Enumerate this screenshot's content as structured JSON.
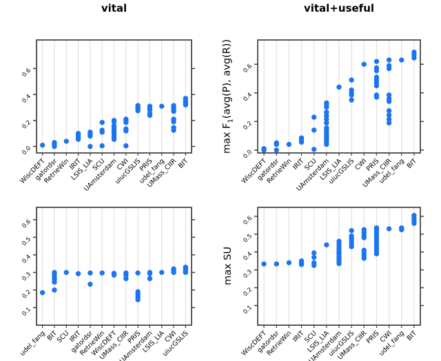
{
  "colors": {
    "dot": "#1c75f0",
    "gridline": "#e1e1e1",
    "axis": "#3c3c3c",
    "text": "#000000",
    "background": "#ffffff"
  },
  "chart_data": [
    {
      "type": "scatter",
      "subtype": "stripchart",
      "title": "vital",
      "xlabel": "",
      "ylabel": "",
      "yticks": [
        0.0,
        0.2,
        0.4,
        0.6
      ],
      "ylim": [
        -0.05,
        0.82
      ],
      "grid": "vertical-per-category",
      "categories": [
        "WiscDEFT",
        "gatordsr",
        "RetrieWin",
        "IRIT",
        "LSIS_LIA",
        "SCU",
        "UAmsterdam",
        "CWI",
        "uiucGSLIS",
        "PRIS",
        "udel_fang",
        "UMass_CIIR",
        "BIT"
      ],
      "values": [
        [
          0.01
        ],
        [
          0.0,
          0.015,
          0.03
        ],
        [
          0.04
        ],
        [
          0.055,
          0.07,
          0.085,
          0.1
        ],
        [
          0.0,
          0.08,
          0.095,
          0.11
        ],
        [
          0.005,
          0.11,
          0.125,
          0.185
        ],
        [
          0.055,
          0.07,
          0.085,
          0.1,
          0.115,
          0.13,
          0.145,
          0.16,
          0.19,
          0.2
        ],
        [
          0.005,
          0.12,
          0.135,
          0.185,
          0.2,
          0.21
        ],
        [
          0.275,
          0.29,
          0.3,
          0.315
        ],
        [
          0.24,
          0.255,
          0.28,
          0.295,
          0.31
        ],
        [
          0.31
        ],
        [
          0.125,
          0.145,
          0.19,
          0.21,
          0.27,
          0.285,
          0.3,
          0.315
        ],
        [
          0.32,
          0.335,
          0.35,
          0.37
        ]
      ]
    },
    {
      "type": "scatter",
      "subtype": "stripchart",
      "title": "vital+useful",
      "xlabel": "",
      "ylabel": "max F1(avg(P), avg(R))",
      "ylabel_parts": {
        "pre": "max F",
        "sub": "1",
        "post": "(avg(P), avg(R))"
      },
      "yticks": [
        0.0,
        0.2,
        0.4,
        0.6
      ],
      "ylim": [
        -0.02,
        0.77
      ],
      "grid": "vertical-per-category",
      "categories": [
        "WiscDEFT",
        "gatordsr",
        "RetrieWin",
        "IRIT",
        "SCU",
        "UAmsterdam",
        "LSIS_LIA",
        "uiucGSLIS",
        "CWI",
        "PRIS",
        "UMass_CIIR",
        "udel_fang",
        "BIT"
      ],
      "values": [
        [
          0.0,
          0.01
        ],
        [
          0.0,
          0.04,
          0.05
        ],
        [
          0.04
        ],
        [
          0.055,
          0.07,
          0.085
        ],
        [
          0.005,
          0.14,
          0.23
        ],
        [
          0.04,
          0.06,
          0.075,
          0.09,
          0.105,
          0.12,
          0.14,
          0.155,
          0.19,
          0.215,
          0.24,
          0.265,
          0.3,
          0.315,
          0.33
        ],
        [
          0.44
        ],
        [
          0.35,
          0.385,
          0.4,
          0.42,
          0.49
        ],
        [
          0.6
        ],
        [
          0.37,
          0.385,
          0.45,
          0.47,
          0.49,
          0.51,
          0.555,
          0.575,
          0.62
        ],
        [
          0.19,
          0.215,
          0.245,
          0.275,
          0.34,
          0.36,
          0.385,
          0.57,
          0.59,
          0.63
        ],
        [
          0.63
        ],
        [
          0.645,
          0.665,
          0.685
        ]
      ]
    },
    {
      "type": "scatter",
      "subtype": "stripchart",
      "title": "",
      "xlabel": "",
      "ylabel": "",
      "yticks": [
        0.1,
        0.2,
        0.3,
        0.4,
        0.5,
        0.6
      ],
      "ylim": [
        0.0,
        0.67
      ],
      "grid": "vertical-per-category",
      "categories": [
        "udel_fang",
        "BIT",
        "SCU",
        "IRIT",
        "gatordsr",
        "RetrieWin",
        "WiscDEFT",
        "UMass_CIIR",
        "PRIS",
        "UAmsterdam",
        "LSIS_LIA",
        "CWI",
        "uiucGSLIS"
      ],
      "values": [
        [
          0.185
        ],
        [
          0.2,
          0.245,
          0.26,
          0.275,
          0.29,
          0.3
        ],
        [
          0.3
        ],
        [
          0.293
        ],
        [
          0.233,
          0.297
        ],
        [
          0.297
        ],
        [
          0.285,
          0.295
        ],
        [
          0.265,
          0.285,
          0.297
        ],
        [
          0.145,
          0.16,
          0.175,
          0.19,
          0.297
        ],
        [
          0.265,
          0.293,
          0.3
        ],
        [
          0.3
        ],
        [
          0.3,
          0.31,
          0.32
        ],
        [
          0.3,
          0.31,
          0.32,
          0.33
        ]
      ]
    },
    {
      "type": "scatter",
      "subtype": "stripchart",
      "title": "",
      "xlabel": "",
      "ylabel": "max SU",
      "ylabel_parts": {
        "pre": "max SU",
        "sub": "",
        "post": ""
      },
      "yticks": [
        0.1,
        0.2,
        0.3,
        0.4,
        0.5,
        0.6
      ],
      "ylim": [
        -0.01,
        0.65
      ],
      "grid": "vertical-per-category",
      "categories": [
        "WiscDEFT",
        "gatordsr",
        "RetrieWin",
        "IRIT",
        "SCU",
        "LSIS_LIA",
        "UAmsterdam",
        "uiucGSLIS",
        "UMass_CIIR",
        "PRIS",
        "CWI",
        "udel_fang",
        "BIT"
      ],
      "values": [
        [
          0.333
        ],
        [
          0.333
        ],
        [
          0.34
        ],
        [
          0.33,
          0.34,
          0.35
        ],
        [
          0.325,
          0.34,
          0.37,
          0.395
        ],
        [
          0.44
        ],
        [
          0.335,
          0.35,
          0.365,
          0.375,
          0.39,
          0.4,
          0.415,
          0.43,
          0.445,
          0.46
        ],
        [
          0.43,
          0.445,
          0.46,
          0.475,
          0.49,
          0.52
        ],
        [
          0.365,
          0.38,
          0.395,
          0.41,
          0.48,
          0.495,
          0.51,
          0.525
        ],
        [
          0.39,
          0.405,
          0.42,
          0.435,
          0.45,
          0.465,
          0.48,
          0.495,
          0.51,
          0.525,
          0.535
        ],
        [
          0.53
        ],
        [
          0.525,
          0.535
        ],
        [
          0.56,
          0.575,
          0.59,
          0.605
        ]
      ]
    }
  ]
}
